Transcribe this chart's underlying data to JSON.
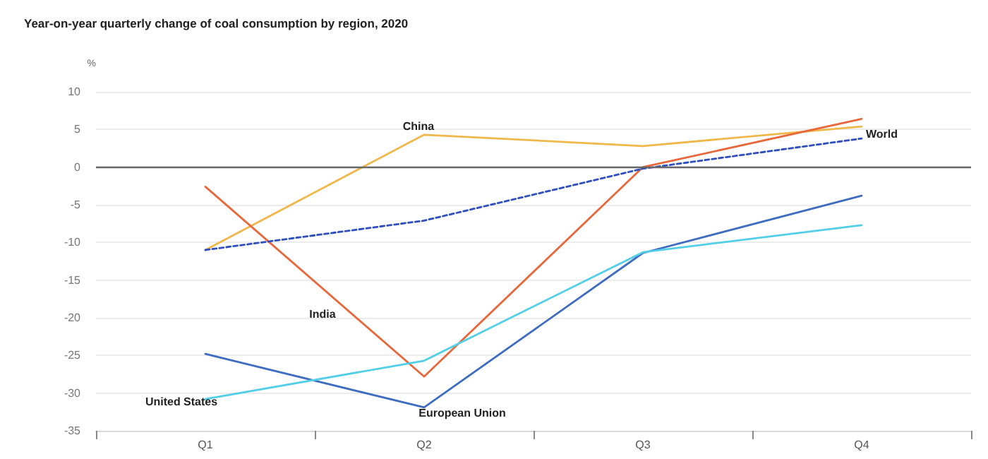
{
  "chart_data": {
    "type": "line",
    "title": "Year-on-year quarterly change of coal consumption by region, 2020",
    "ylabel": "%",
    "categories": [
      "Q1",
      "Q2",
      "Q3",
      "Q4"
    ],
    "series": [
      {
        "name": "China",
        "color": "#f0b84a",
        "values": [
          -11,
          4.3,
          2.8,
          5.4
        ]
      },
      {
        "name": "India",
        "color": "#e8683c",
        "values": [
          -2.6,
          -27.8,
          0,
          6.4
        ]
      },
      {
        "name": "World",
        "color": "#2e4fbd",
        "values": [
          -11,
          -7.1,
          -0.2,
          3.8
        ],
        "line_style": "dashed"
      },
      {
        "name": "European Union",
        "color": "#3d6cc0",
        "values": [
          -24.8,
          -31.9,
          -11.4,
          -3.8
        ]
      },
      {
        "name": "United States",
        "color": "#52cfe6",
        "values": [
          -30.8,
          -25.7,
          -11.3,
          -7.7
        ]
      }
    ],
    "ylim": [
      -35,
      10
    ],
    "yticks": [
      -35,
      -30,
      -25,
      -20,
      -15,
      -10,
      -5,
      0,
      5,
      10
    ],
    "grid": "y",
    "marker": "none",
    "line_style": "solid",
    "ref_lines": [
      {
        "axis": "y",
        "value": 0,
        "color": "#666666"
      }
    ]
  }
}
